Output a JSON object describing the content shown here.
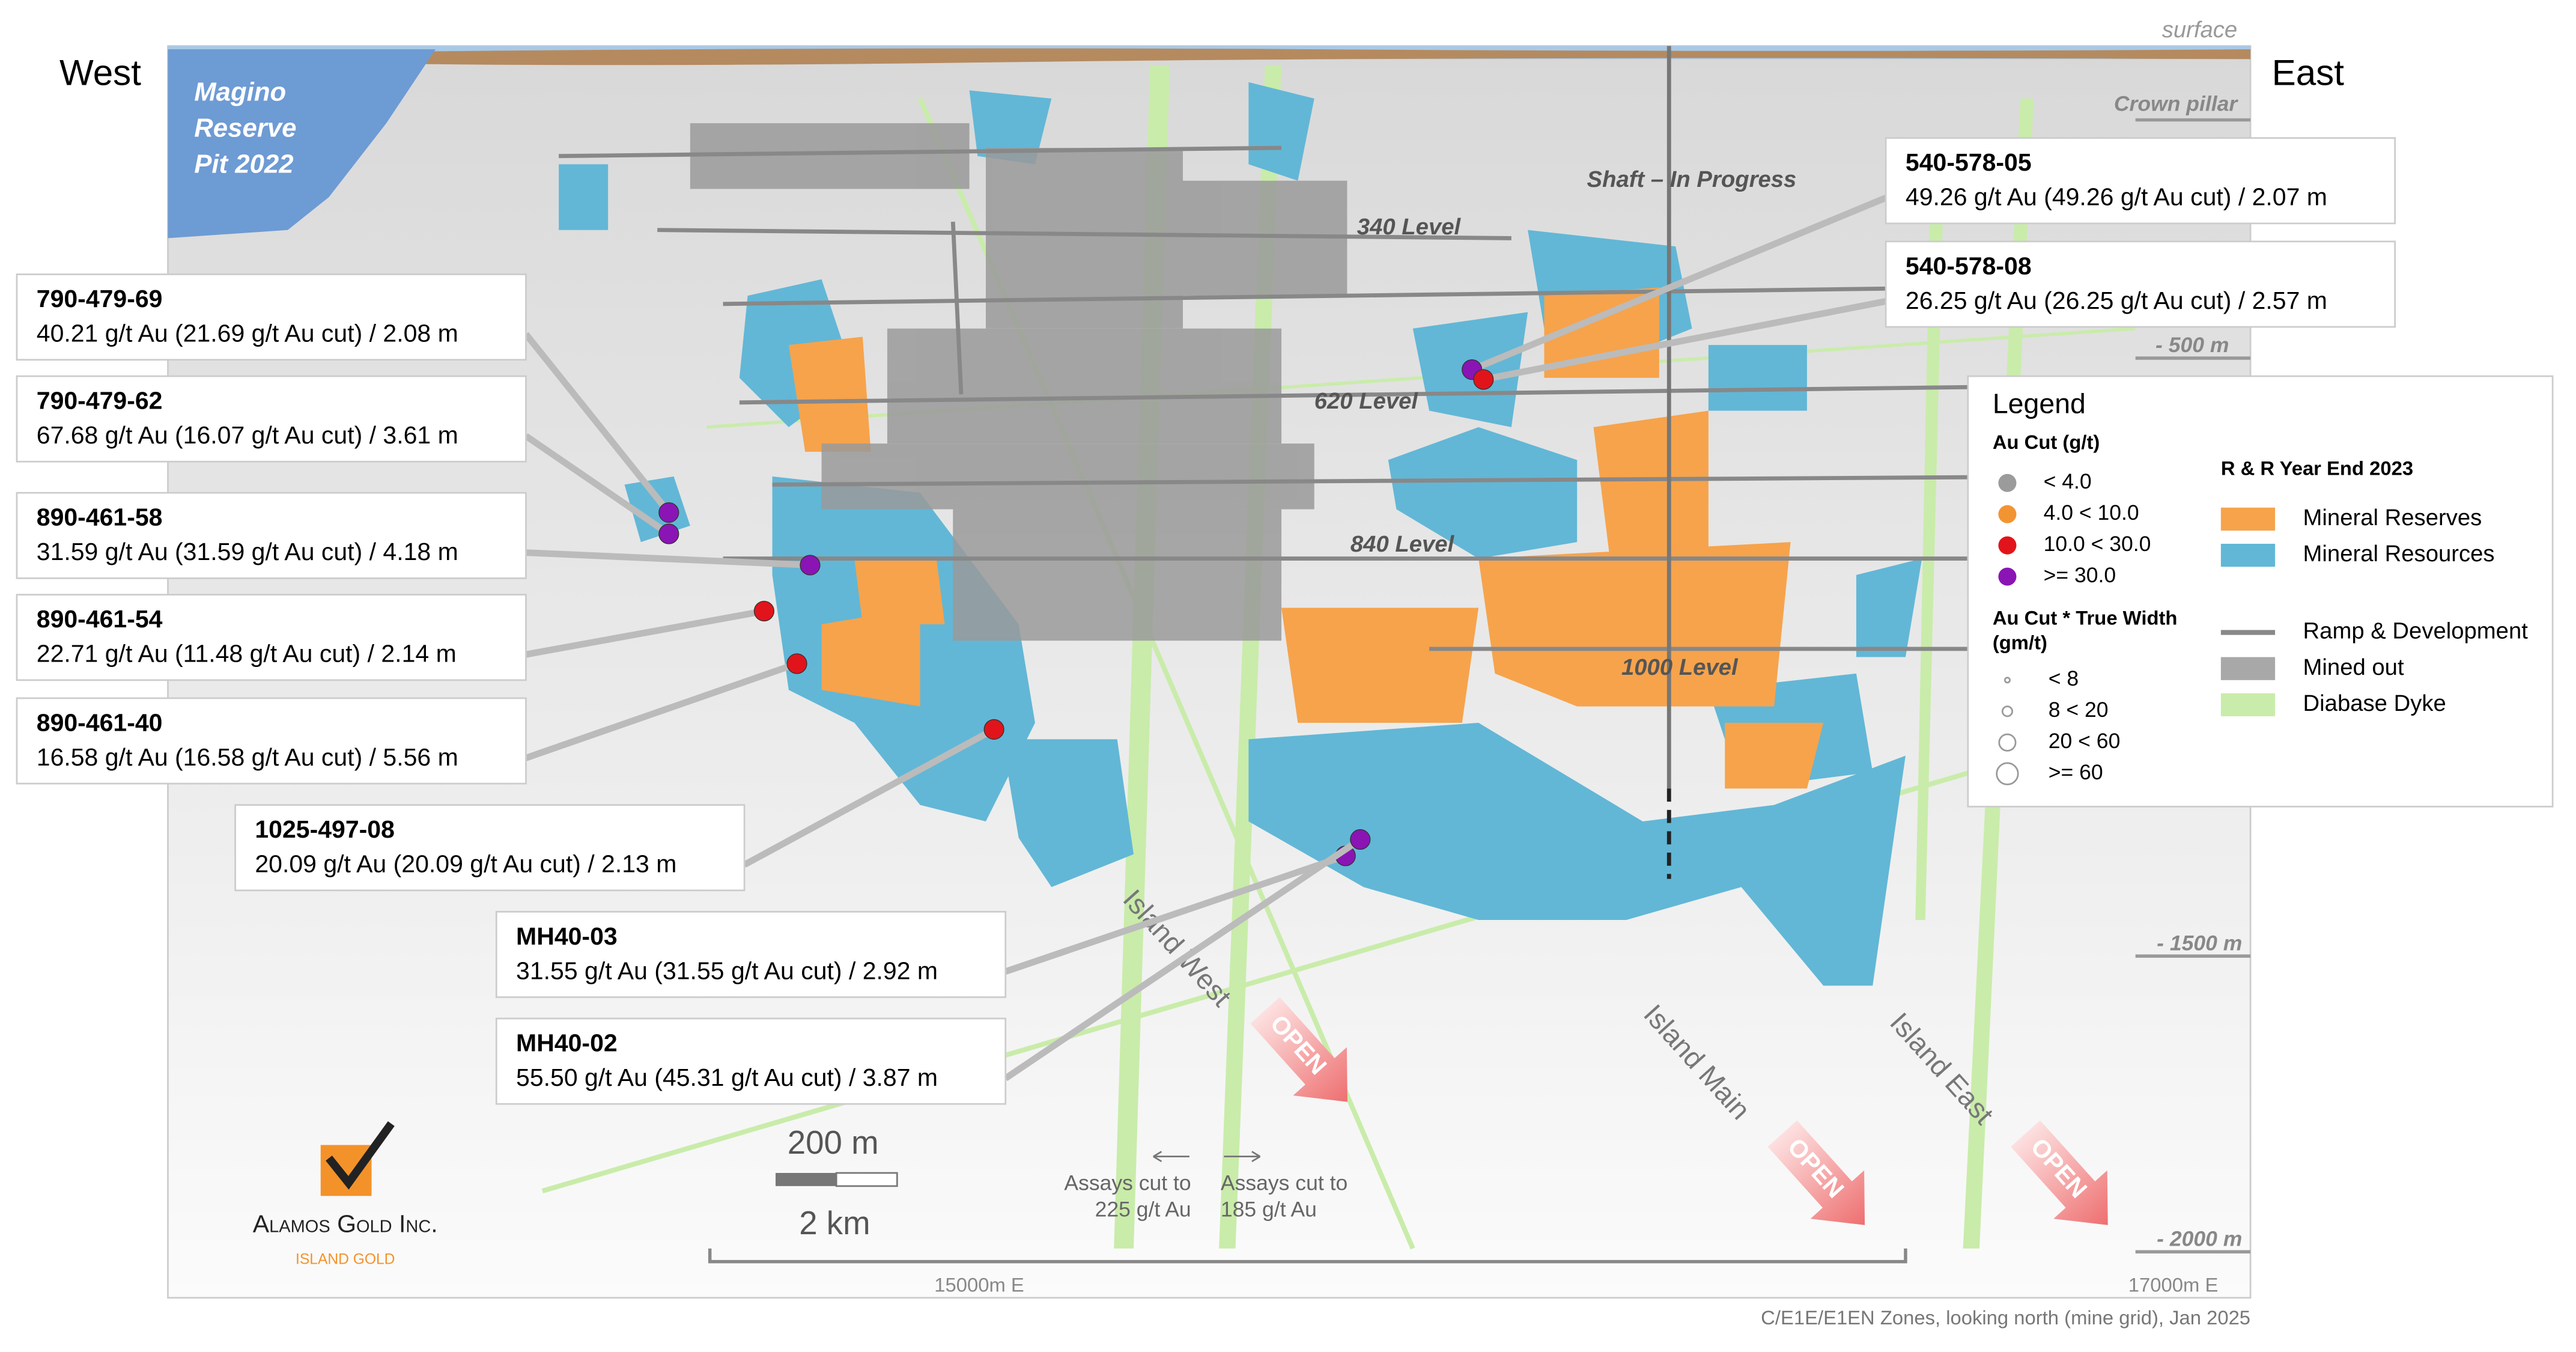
{
  "labels": {
    "west": "West",
    "east": "East",
    "surface": "surface",
    "crown_pillar": "Crown pillar",
    "pit": [
      "Magino",
      "Reserve",
      "Pit 2022"
    ],
    "shaft": "Shaft – In Progress",
    "levels": [
      "340 Level",
      "620 Level",
      "840 Level",
      "1000 Level"
    ],
    "depths": [
      "- 500 m",
      "- 1500 m",
      "- 2000 m"
    ],
    "zones": [
      "Island West",
      "Island Main",
      "Island East"
    ],
    "open": [
      "OPEN",
      "OPEN",
      "OPEN"
    ],
    "scale_small": "200 m",
    "scale_large": "2 km",
    "eastings": [
      "15000m E",
      "17000m E"
    ],
    "assays": [
      [
        "Assays cut to",
        "225 g/t Au"
      ],
      [
        "Assays cut to",
        "185 g/t Au"
      ]
    ],
    "footer": "C/E1E/E1EN Zones, looking north (mine grid), Jan 2025",
    "logo": {
      "company": "Alamos Gold Inc.",
      "mine": "ISLAND GOLD"
    }
  },
  "callouts": [
    {
      "id": "790-479-69",
      "text": "40.21 g/t Au (21.69 g/t Au cut) / 2.08 m"
    },
    {
      "id": "790-479-62",
      "text": "67.68 g/t Au (16.07 g/t Au cut) / 3.61 m"
    },
    {
      "id": "890-461-58",
      "text": "31.59 g/t Au (31.59 g/t Au cut) / 4.18 m"
    },
    {
      "id": "890-461-54",
      "text": "22.71 g/t Au (11.48 g/t Au cut) / 2.14 m"
    },
    {
      "id": "890-461-40",
      "text": "16.58 g/t Au (16.58 g/t Au cut) / 5.56 m"
    },
    {
      "id": "1025-497-08",
      "text": "20.09 g/t Au (20.09 g/t Au cut) / 2.13 m"
    },
    {
      "id": "MH40-03",
      "text": "31.55 g/t Au (31.55 g/t Au cut) / 2.92 m"
    },
    {
      "id": "MH40-02",
      "text": "55.50 g/t Au (45.31 g/t Au cut) / 3.87 m"
    },
    {
      "id": "540-578-05",
      "text": "49.26 g/t Au (49.26 g/t Au cut) / 2.07 m"
    },
    {
      "id": "540-578-08",
      "text": "26.25 g/t Au (26.25 g/t Au cut) / 2.57 m"
    }
  ],
  "legend": {
    "title": "Legend",
    "au_cut": {
      "title": "Au Cut (g/t)",
      "items": [
        "< 4.0",
        "4.0 < 10.0",
        "10.0 < 30.0",
        ">= 30.0"
      ]
    },
    "width": {
      "title": [
        "Au Cut * True Width",
        "(gm/t)"
      ],
      "items": [
        "< 8",
        "8 < 20",
        "20 < 60",
        ">= 60"
      ]
    },
    "rr": {
      "title": "R & R Year End 2023",
      "items": [
        "Mineral Reserves",
        "Mineral Resources"
      ]
    },
    "other": [
      "Ramp & Development",
      "Mined out",
      "Diabase Dyke"
    ]
  }
}
